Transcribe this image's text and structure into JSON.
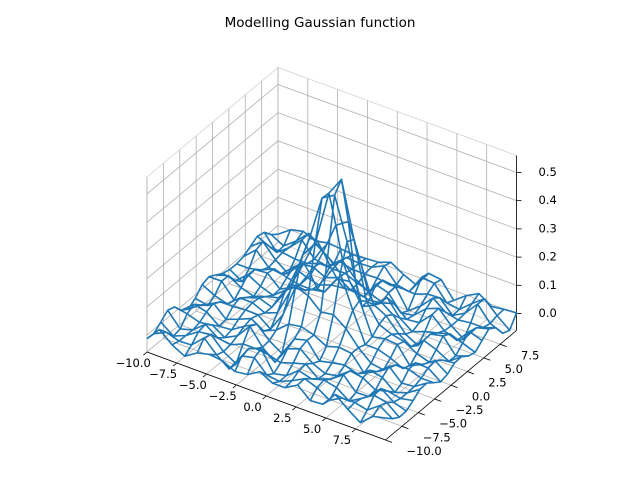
{
  "chart_data": {
    "type": "wireframe",
    "title": "Modelling Gaussian function",
    "xlabel": "",
    "ylabel": "",
    "zlabel": "",
    "xlim": [
      -10,
      10
    ],
    "ylim": [
      -10,
      10
    ],
    "zlim": [
      -0.06,
      0.56
    ],
    "x_ticks": [
      -10.0,
      -7.5,
      -5.0,
      -2.5,
      0.0,
      2.5,
      5.0,
      7.5
    ],
    "x_tick_labels": [
      "−10.0",
      "−7.5",
      "−5.0",
      "−2.5",
      "0.0",
      "2.5",
      "5.0",
      "7.5"
    ],
    "y_ticks": [
      -10.0,
      -7.5,
      -5.0,
      -2.5,
      0.0,
      2.5,
      5.0,
      7.5
    ],
    "y_tick_labels": [
      "−10.0",
      "−7.5",
      "−5.0",
      "−2.5",
      "0.0",
      "2.5",
      "5.0",
      "7.5"
    ],
    "z_ticks": [
      0.0,
      0.1,
      0.2,
      0.3,
      0.4,
      0.5
    ],
    "z_tick_labels": [
      "0.0",
      "0.1",
      "0.2",
      "0.3",
      "0.4",
      "0.5"
    ],
    "grid": true,
    "legend": "none",
    "color": "#1f77b4",
    "surface": {
      "function": "z = exp(-(x^2 + y^2) / 2) / (2*pi) + small oscillating noise",
      "x_range": [
        -10,
        10
      ],
      "y_range": [
        -10,
        10
      ],
      "grid_points": 20,
      "peak_value": 0.5
    }
  }
}
